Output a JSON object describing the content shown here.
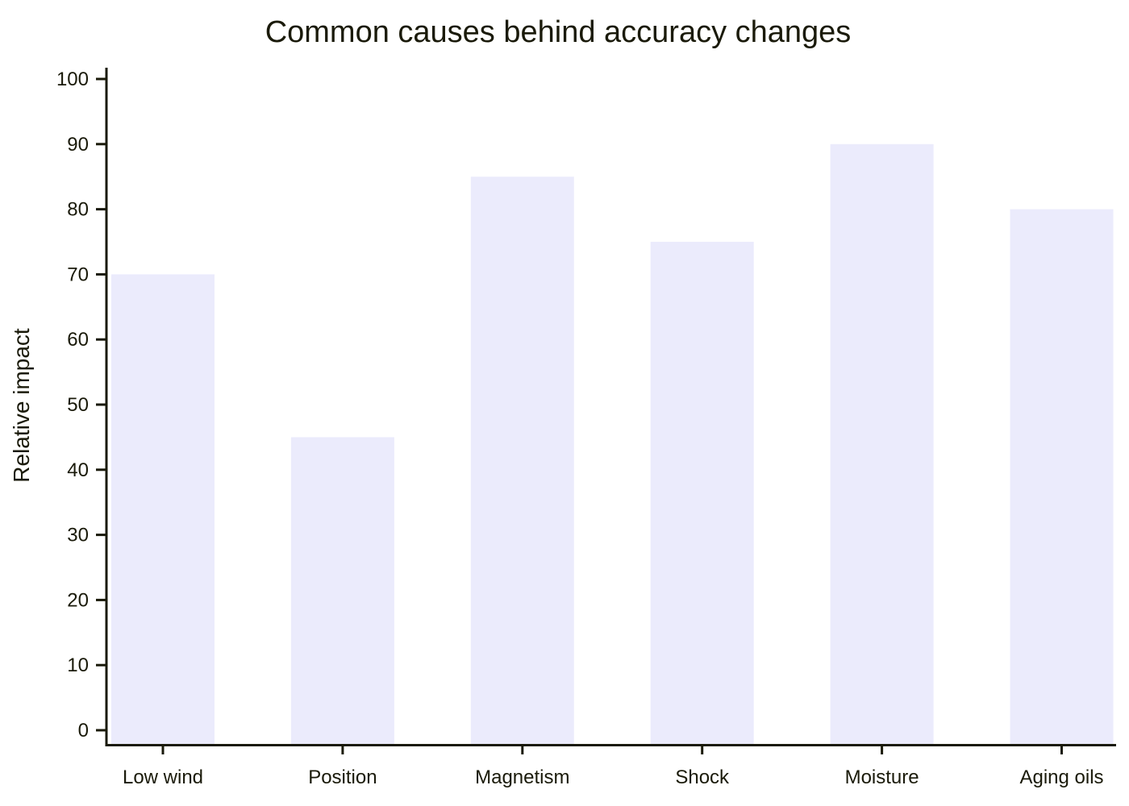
{
  "chart_data": {
    "type": "bar",
    "title": "Common causes behind accuracy changes",
    "xlabel": "",
    "ylabel": "Relative impact",
    "categories": [
      "Low wind",
      "Position",
      "Magnetism",
      "Shock",
      "Moisture",
      "Aging oils"
    ],
    "values": [
      70,
      45,
      85,
      75,
      90,
      80
    ],
    "ylim": [
      0,
      100
    ],
    "yticks": [
      0,
      10,
      20,
      30,
      40,
      50,
      60,
      70,
      80,
      90,
      100
    ],
    "ytick_labels": [
      "0",
      "10",
      "20",
      "30",
      "40",
      "50",
      "60",
      "70",
      "80",
      "90",
      "100"
    ],
    "grid": false,
    "legend": "none",
    "colors": {
      "bar": "#ebebfc",
      "axis": "#1a1a0a",
      "text": "#1a1a0a"
    }
  }
}
